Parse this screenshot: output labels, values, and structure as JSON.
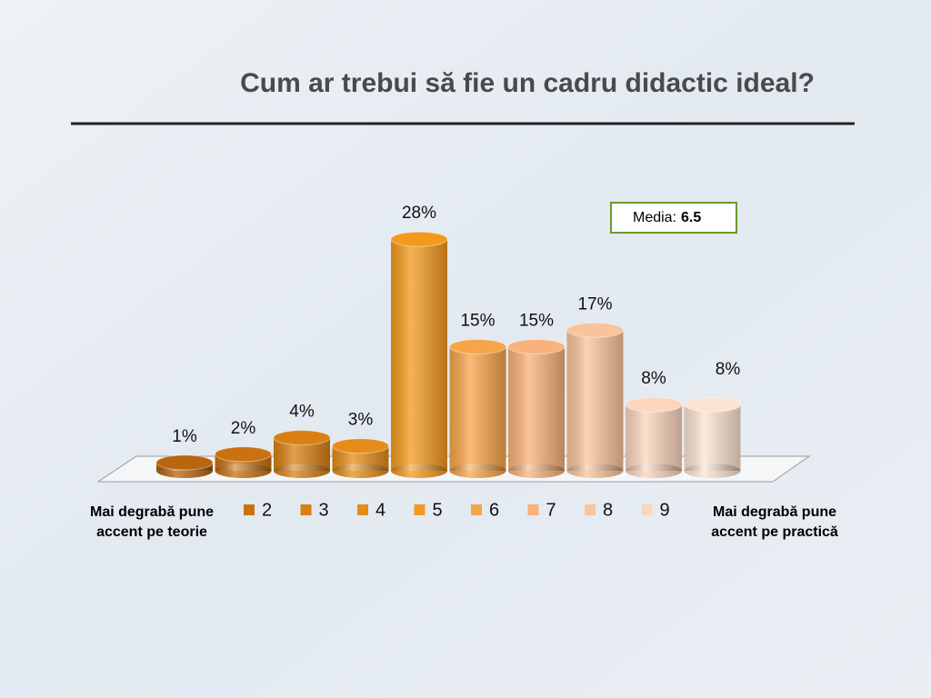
{
  "chart_data": {
    "type": "bar",
    "title": "Cum ar trebui să fie un cadru didactic ideal?",
    "categories": [
      null,
      "2",
      "3",
      "4",
      "5",
      "6",
      "7",
      "8",
      "9",
      null
    ],
    "values": [
      1,
      2,
      4,
      3,
      28,
      15,
      15,
      17,
      8,
      8
    ],
    "value_labels": [
      "1%",
      "2%",
      "4%",
      "3%",
      "28%",
      "15%",
      "15%",
      "17%",
      "8%",
      "8%"
    ],
    "colors": [
      "#b8650d",
      "#c9720f",
      "#d98015",
      "#e68c18",
      "#f39a1e",
      "#f7a549",
      "#f8b27a",
      "#f9c49c",
      "#fbd6bd",
      "#fce4d2"
    ],
    "left_label": "Mai degrabă pune accent pe teorie",
    "right_label": "Mai degrabă pune accent pe practică",
    "media_label": "Media:",
    "media_value": "6.5"
  }
}
